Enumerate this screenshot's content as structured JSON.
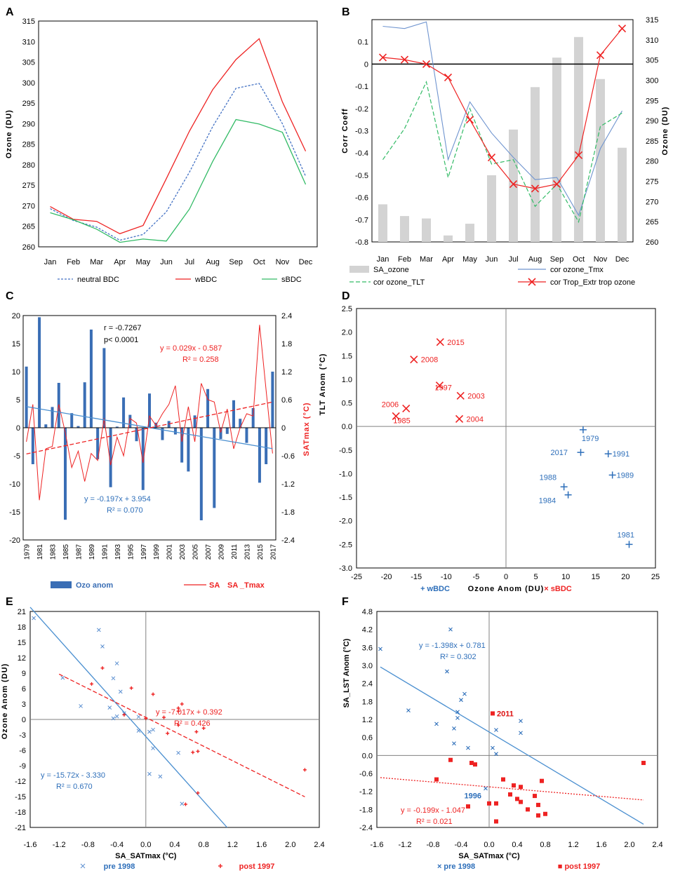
{
  "colors": {
    "blue": "#3f7fcf",
    "navy": "#2e5e9e",
    "red": "#ee2222",
    "green": "#33bb66",
    "gray": "#d3d3d3",
    "darkred": "#dd1111",
    "axis": "#000000",
    "zero": "#808080"
  },
  "chart_data": [
    {
      "panel": "A",
      "type": "line",
      "ylabel": "Ozone (DU)",
      "ylim": [
        260,
        315
      ],
      "yticks": [
        "260",
        "265",
        "270",
        "275",
        "280",
        "285",
        "290",
        "295",
        "300",
        "305",
        "310",
        "315"
      ],
      "categories": [
        "Jan",
        "Feb",
        "Mar",
        "Apr",
        "May",
        "Jun",
        "Jul",
        "Aug",
        "Sep",
        "Oct",
        "Nov",
        "Dec"
      ],
      "series": [
        {
          "name": "neutral BDC",
          "style": "dotted",
          "color": "#4472c4",
          "values": [
            269.3,
            266.4,
            264.8,
            261.6,
            263.0,
            268.5,
            278.2,
            289.3,
            298.6,
            299.8,
            290.0,
            277.2
          ]
        },
        {
          "name": "wBDC",
          "style": "solid",
          "color": "#ee2222",
          "values": [
            269.8,
            266.7,
            266.2,
            263.2,
            265.2,
            276.6,
            288.2,
            298.3,
            305.6,
            310.7,
            295.3,
            283.3
          ]
        },
        {
          "name": "sBDC",
          "style": "solid",
          "color": "#33bb66",
          "values": [
            268.3,
            266.6,
            264.3,
            261.1,
            261.9,
            261.4,
            269.2,
            280.8,
            291.0,
            289.9,
            287.9,
            275.2
          ]
        }
      ]
    },
    {
      "panel": "B",
      "type": "bar+line",
      "ylabel": "Corr Coeff",
      "y2label": "Ozone (DU)",
      "ylim": [
        -0.8,
        0.2
      ],
      "y2lim": [
        260,
        315
      ],
      "yticks": [
        "0.1",
        "0",
        "-0.1",
        "-0.2",
        "-0.3",
        "-0.4",
        "-0.5",
        "-0.6",
        "-0.7",
        "-0.8"
      ],
      "y2ticks": [
        "260",
        "265",
        "270",
        "275",
        "280",
        "285",
        "290",
        "295",
        "300",
        "305",
        "310",
        "315"
      ],
      "categories": [
        "Jan",
        "Feb",
        "Mar",
        "Apr",
        "May",
        "Jun",
        "Jul",
        "Aug",
        "Sep",
        "Oct",
        "Nov",
        "Dec"
      ],
      "bars": {
        "name": "SA_ozone",
        "values": [
          269.3,
          266.4,
          265.8,
          261.6,
          264.5,
          276.5,
          287.8,
          298.3,
          305.6,
          310.7,
          300.3,
          283.3
        ]
      },
      "series": [
        {
          "name": "cor ozone_Tmx",
          "values": [
            0.17,
            0.16,
            0.19,
            -0.43,
            -0.17,
            -0.31,
            -0.42,
            -0.52,
            -0.51,
            -0.68,
            -0.38,
            -0.21
          ]
        },
        {
          "name": "cor ozone_TLT",
          "values": [
            -0.43,
            -0.29,
            -0.08,
            -0.51,
            -0.2,
            -0.45,
            -0.43,
            -0.64,
            -0.54,
            -0.71,
            -0.28,
            -0.22
          ]
        },
        {
          "name": "cor Trop_Extr trop ozone",
          "values": [
            0.03,
            0.02,
            0.0,
            -0.06,
            -0.25,
            -0.42,
            -0.54,
            -0.56,
            -0.54,
            -0.41,
            0.04,
            0.16
          ]
        }
      ],
      "legend": [
        "SA_ozone",
        "cor ozone_Tmx",
        "cor ozone_TLT",
        "cor Trop_Extr trop ozone"
      ]
    },
    {
      "panel": "C",
      "type": "bar+line",
      "ylim": [
        -20,
        20
      ],
      "y2lim": [
        -2.4,
        2.4
      ],
      "y2label": "SATmax (°C)",
      "yticks": [
        "20",
        "15",
        "10",
        "5",
        "0",
        "-5",
        "-10",
        "-15",
        "-20"
      ],
      "y2ticks": [
        "2.4",
        "1.8",
        "1.2",
        "0.6",
        "0",
        "-0.6",
        "-1.2",
        "-1.8",
        "-2.4"
      ],
      "x": [
        1979,
        1980,
        1981,
        1982,
        1983,
        1984,
        1985,
        1986,
        1987,
        1988,
        1989,
        1990,
        1991,
        1992,
        1993,
        1994,
        1995,
        1996,
        1997,
        1998,
        1999,
        2000,
        2001,
        2002,
        2003,
        2004,
        2005,
        2006,
        2007,
        2008,
        2009,
        2010,
        2011,
        2012,
        2013,
        2014,
        2015,
        2016,
        2017
      ],
      "xticks": [
        "1979",
        "1981",
        "1983",
        "1985",
        "1987",
        "1989",
        "1991",
        "1993",
        "1995",
        "1997",
        "1999",
        "2001",
        "2003",
        "2005",
        "2007",
        "2009",
        "2011",
        "2013",
        "2015",
        "2017"
      ],
      "bars": {
        "name": "Ozo anom",
        "values": [
          10.9,
          -6.5,
          19.7,
          0.6,
          3.7,
          8.0,
          -16.4,
          2.6,
          0.3,
          8.1,
          17.5,
          -5.6,
          14.2,
          -10.6,
          0.2,
          5.4,
          2.3,
          -2.4,
          -11.1,
          6.1,
          0.9,
          -2.2,
          1.2,
          -1.2,
          -6.2,
          -7.8,
          2.2,
          -16.5,
          6.9,
          -14.3,
          -2.0,
          -1.1,
          4.9,
          1.6,
          -2.7,
          3.5,
          -9.8,
          -6.5,
          10.0
        ]
      },
      "line": {
        "name": "SA _Tmax",
        "values": [
          -0.3,
          0.5,
          -1.55,
          -0.45,
          -0.4,
          0.5,
          -0.1,
          -0.85,
          -0.5,
          -1.15,
          -0.55,
          -0.7,
          0.2,
          -0.8,
          -0.2,
          -0.6,
          0.2,
          0.1,
          -0.75,
          0.25,
          0.05,
          0.3,
          0.5,
          0.9,
          -0.3,
          0.45,
          -0.3,
          0.95,
          0.6,
          0.55,
          -0.1,
          0.4,
          -0.45,
          0.0,
          0.3,
          0.25,
          2.2,
          0.8,
          -0.55
        ]
      },
      "fits": [
        {
          "name": "ozone trend",
          "eq": "y = -0.197x + 3.954",
          "r2": "R² = 0.070",
          "start": 3.76,
          "end": -3.73
        },
        {
          "name": "SATmax trend",
          "eq": "y = 0.029x - 0.587",
          "r2": "R² = 0.258",
          "start": -0.56,
          "end": 0.55
        }
      ],
      "annotation": [
        "r  = -0.7267",
        "p< 0.0001"
      ],
      "legend": [
        "Ozo anom",
        "SA",
        "SA _Tmax"
      ]
    },
    {
      "panel": "D",
      "type": "scatter",
      "xlabel": "Ozone Anom (DU)",
      "ylabel": "TLT Anom (°C)",
      "xlim": [
        -25,
        25
      ],
      "ylim": [
        -3.0,
        2.5
      ],
      "xticks": [
        "-25",
        "-20",
        "-15",
        "-10",
        "-5",
        "0",
        "5",
        "10",
        "15",
        "20",
        "25"
      ],
      "yticks": [
        "2.5",
        "2.0",
        "1.5",
        "1.0",
        "0.5",
        "0.0",
        "-0.5",
        "-1.0",
        "-1.5",
        "-2.0",
        "-2.5",
        "-3.0"
      ],
      "series": [
        {
          "name": "wBDC",
          "marker": "+",
          "points": [
            {
              "x": 12.9,
              "y": -0.07,
              "label": "1979"
            },
            {
              "x": 12.5,
              "y": -0.55,
              "label": "2017"
            },
            {
              "x": 17.1,
              "y": -0.58,
              "label": "1991"
            },
            {
              "x": 17.8,
              "y": -1.03,
              "label": "1989"
            },
            {
              "x": 9.7,
              "y": -1.28,
              "label": "1988"
            },
            {
              "x": 10.4,
              "y": -1.45,
              "label": "1984"
            },
            {
              "x": 20.6,
              "y": -2.5,
              "label": "1981"
            }
          ]
        },
        {
          "name": "sBDC",
          "marker": "x",
          "points": [
            {
              "x": -11.0,
              "y": 1.79,
              "label": "2015"
            },
            {
              "x": -15.4,
              "y": 1.42,
              "label": "2008"
            },
            {
              "x": -11.1,
              "y": 0.87,
              "label": "1997"
            },
            {
              "x": -7.6,
              "y": 0.65,
              "label": "2003"
            },
            {
              "x": -16.7,
              "y": 0.38,
              "label": "2006"
            },
            {
              "x": -18.4,
              "y": 0.22,
              "label": "1985"
            },
            {
              "x": -7.8,
              "y": 0.16,
              "label": "2004"
            }
          ]
        }
      ],
      "legend": [
        "+ wBDC",
        "× sBDC"
      ]
    },
    {
      "panel": "E",
      "type": "scatter",
      "xlabel": "SA_SATmax (°C)",
      "ylabel": "Ozone Anom (DU)",
      "xlim": [
        -1.6,
        2.4
      ],
      "ylim": [
        -21,
        21
      ],
      "xticks": [
        "-1.6",
        "-1.2",
        "-0.8",
        "-0.4",
        "0.0",
        "0.4",
        "0.8",
        "1.2",
        "1.6",
        "2.0",
        "2.4"
      ],
      "yticks": [
        "21",
        "18",
        "15",
        "12",
        "9",
        "6",
        "3",
        "0",
        "-3",
        "-6",
        "-9",
        "-12",
        "-15",
        "-18",
        "-21"
      ],
      "series": [
        {
          "name": "pre 1998",
          "marker": "x",
          "points": [
            [
              -1.55,
              19.7
            ],
            [
              -0.65,
              17.4
            ],
            [
              -0.6,
              14.2
            ],
            [
              -0.4,
              10.9
            ],
            [
              -1.15,
              8.1
            ],
            [
              -0.45,
              8.0
            ],
            [
              -0.35,
              5.4
            ],
            [
              -0.5,
              2.3
            ],
            [
              -0.9,
              2.6
            ],
            [
              -0.3,
              1.2
            ],
            [
              -0.1,
              0.5
            ],
            [
              -0.45,
              0.2
            ],
            [
              -0.4,
              0.6
            ],
            [
              0.1,
              -2.0
            ],
            [
              0.05,
              -2.4
            ],
            [
              0.1,
              -5.6
            ],
            [
              0.45,
              -6.5
            ],
            [
              0.05,
              -10.6
            ],
            [
              0.2,
              -11.1
            ],
            [
              0.5,
              -16.4
            ],
            [
              -0.1,
              -2.2
            ]
          ]
        },
        {
          "name": "post 1997",
          "marker": "+",
          "points": [
            [
              -0.6,
              10.0
            ],
            [
              -0.75,
              6.9
            ],
            [
              -0.2,
              6.1
            ],
            [
              0.45,
              2.2
            ],
            [
              0.1,
              4.9
            ],
            [
              0.45,
              1.6
            ],
            [
              0.5,
              3.0
            ],
            [
              0.25,
              0.4
            ],
            [
              0.3,
              -2.7
            ],
            [
              0.45,
              -1.1
            ],
            [
              0.7,
              -2.4
            ],
            [
              0.8,
              -1.7
            ],
            [
              0.72,
              -6.2
            ],
            [
              0.65,
              -6.4
            ],
            [
              0.72,
              -14.3
            ],
            [
              0.55,
              -16.5
            ],
            [
              2.2,
              -9.8
            ],
            [
              -0.3,
              0.9
            ],
            [
              0.0,
              0.2
            ]
          ]
        }
      ],
      "fits": [
        {
          "name": "pre 1998 fit",
          "eq": "y = -15.72x - 3.330",
          "r2": "R² = 0.670",
          "slope": -15.72,
          "intercept": -3.33
        },
        {
          "name": "post 1997 fit",
          "eq": "y = -7.017x + 0.392",
          "r2": "R² = 0.426",
          "slope": -7.017,
          "intercept": 0.392
        }
      ],
      "legend": [
        "pre 1998",
        "post 1997"
      ]
    },
    {
      "panel": "F",
      "type": "scatter",
      "xlabel": "SA_SATmax (°C)",
      "ylabel": "SA_LST Anom (°C)",
      "xlim": [
        -1.6,
        2.4
      ],
      "ylim": [
        -2.4,
        4.8
      ],
      "xticks": [
        "-1.6",
        "-1.2",
        "-0.8",
        "-0.4",
        "0.0",
        "0.4",
        "0.8",
        "1.2",
        "1.6",
        "2.0",
        "2.4"
      ],
      "yticks": [
        "4.8",
        "4.2",
        "3.6",
        "3.0",
        "2.4",
        "1.8",
        "1.2",
        "0.6",
        "0.0",
        "-0.6",
        "-1.2",
        "-1.8",
        "-2.4"
      ],
      "series": [
        {
          "name": "pre 1998",
          "marker": "x",
          "points": [
            [
              -1.55,
              3.55
            ],
            [
              -0.55,
              4.2
            ],
            [
              -0.6,
              2.8
            ],
            [
              -1.15,
              1.5
            ],
            [
              -0.75,
              1.05
            ],
            [
              -0.4,
              1.85
            ],
            [
              -0.35,
              2.05
            ],
            [
              -0.45,
              1.45
            ],
            [
              -0.45,
              1.25
            ],
            [
              -0.5,
              0.9
            ],
            [
              -0.5,
              0.4
            ],
            [
              -0.3,
              0.25
            ],
            [
              0.1,
              0.85
            ],
            [
              0.45,
              1.15
            ],
            [
              0.45,
              0.75
            ],
            [
              0.05,
              0.25
            ],
            [
              0.1,
              0.05
            ],
            [
              -0.05,
              -1.1
            ]
          ]
        },
        {
          "name": "post 1997",
          "marker": "square",
          "points": [
            [
              0.05,
              1.4
            ],
            [
              -0.55,
              -0.15
            ],
            [
              -0.75,
              -0.8
            ],
            [
              -0.25,
              -0.25
            ],
            [
              -0.2,
              -0.3
            ],
            [
              0.2,
              -0.8
            ],
            [
              0.35,
              -1.0
            ],
            [
              0.45,
              -1.05
            ],
            [
              0.75,
              -0.85
            ],
            [
              -0.3,
              -1.7
            ],
            [
              0.0,
              -1.6
            ],
            [
              0.1,
              -1.6
            ],
            [
              0.3,
              -1.3
            ],
            [
              0.4,
              -1.45
            ],
            [
              0.45,
              -1.55
            ],
            [
              0.55,
              -1.8
            ],
            [
              0.65,
              -1.35
            ],
            [
              0.7,
              -1.65
            ],
            [
              0.7,
              -2.0
            ],
            [
              0.8,
              -1.95
            ],
            [
              0.1,
              -2.2
            ],
            [
              2.2,
              -0.25
            ]
          ]
        }
      ],
      "fits": [
        {
          "name": "pre 1998 fit",
          "eq": "y = -1.398x + 0.781",
          "r2": "R² = 0.302",
          "slope": -1.398,
          "intercept": 0.781
        },
        {
          "name": "post 1997 fit",
          "eq": "y = -0.199x - 1.047",
          "r2": "R² = 0.021",
          "slope": -0.199,
          "intercept": -1.047
        }
      ],
      "labels": [
        {
          "text": "2011",
          "x": 0.05,
          "y": 1.4
        },
        {
          "text": "1996",
          "x": -0.05,
          "y": -1.1
        }
      ],
      "legend": [
        "× pre 1998",
        "■ post 1997"
      ]
    }
  ],
  "panel_letters": [
    "A",
    "B",
    "C",
    "D",
    "E",
    "F"
  ]
}
